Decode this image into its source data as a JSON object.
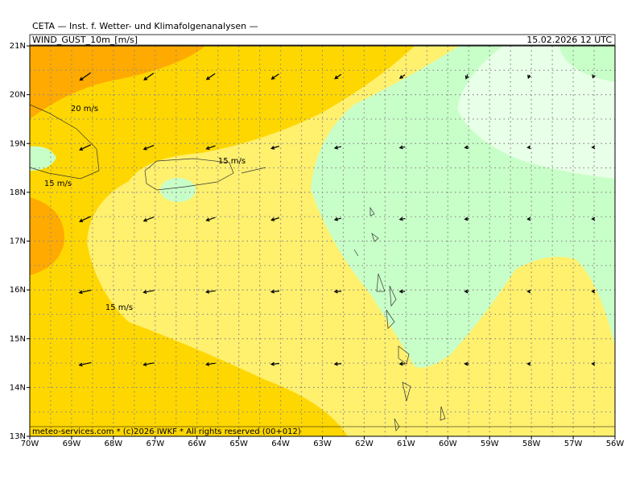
{
  "header": {
    "title": "CETA — Inst. f. Wetter- und Klimafolgenanalysen —",
    "variable": "WIND_GUST_10m_[m/s]",
    "valid_time": "15.02.2026 12 UTC"
  },
  "footer": "meteo-services.com * (c)2026 IWKF * All rights reserved (00+012)",
  "map": {
    "lat_labels": [
      "21N",
      "20N",
      "19N",
      "18N",
      "17N",
      "16N",
      "15N",
      "14N",
      "13N"
    ],
    "lon_labels": [
      "70W",
      "69W",
      "68W",
      "67W",
      "66W",
      "65W",
      "64W",
      "63W",
      "62W",
      "61W",
      "60W",
      "59W",
      "58W",
      "57W",
      "56W"
    ],
    "contour_labels": [
      "20 m/s",
      "15 m/s",
      "15 m/s",
      "15 m/s"
    ]
  }
}
